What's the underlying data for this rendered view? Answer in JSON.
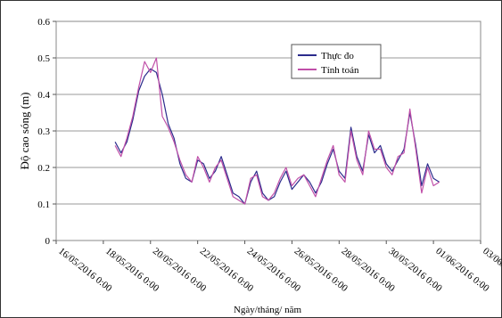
{
  "chart_data": {
    "type": "line",
    "title": "",
    "xlabel": "Ngày/tháng/ năm",
    "ylabel": "Độ cao sóng (m)",
    "ylim": [
      0,
      0.6
    ],
    "yticks": [
      "0",
      "0.1",
      "0.2",
      "0.3",
      "0.4",
      "0.5",
      "0.6"
    ],
    "xlim": [
      "2016-05-16",
      "2016-06-03"
    ],
    "xticks": [
      "16/05/2016 0:00",
      "18/05/2016 0:00",
      "20/05/2016 0:00",
      "22/05/2016 0:00",
      "24/05/2016 0:00",
      "26/05/2016 0:00",
      "28/05/2016 0:00",
      "30/05/2016 0:00",
      "01/06/2016 0:00",
      "03/06/2016 0:00"
    ],
    "grid": "horizontal",
    "legend": "top-right",
    "x": [
      "2016-05-18 12:00",
      "2016-05-18 18:00",
      "2016-05-19 00:00",
      "2016-05-19 06:00",
      "2016-05-19 12:00",
      "2016-05-19 18:00",
      "2016-05-20 00:00",
      "2016-05-20 06:00",
      "2016-05-20 12:00",
      "2016-05-20 18:00",
      "2016-05-21 00:00",
      "2016-05-21 06:00",
      "2016-05-21 12:00",
      "2016-05-21 18:00",
      "2016-05-22 00:00",
      "2016-05-22 06:00",
      "2016-05-22 12:00",
      "2016-05-22 18:00",
      "2016-05-23 00:00",
      "2016-05-23 06:00",
      "2016-05-23 12:00",
      "2016-05-23 18:00",
      "2016-05-24 00:00",
      "2016-05-24 06:00",
      "2016-05-24 12:00",
      "2016-05-24 18:00",
      "2016-05-25 00:00",
      "2016-05-25 06:00",
      "2016-05-25 12:00",
      "2016-05-25 18:00",
      "2016-05-26 00:00",
      "2016-05-26 06:00",
      "2016-05-26 12:00",
      "2016-05-26 18:00",
      "2016-05-27 00:00",
      "2016-05-27 06:00",
      "2016-05-27 12:00",
      "2016-05-27 18:00",
      "2016-05-28 00:00",
      "2016-05-28 06:00",
      "2016-05-28 12:00",
      "2016-05-28 18:00",
      "2016-05-29 00:00",
      "2016-05-29 06:00",
      "2016-05-29 12:00",
      "2016-05-29 18:00",
      "2016-05-30 00:00",
      "2016-05-30 06:00",
      "2016-05-30 12:00",
      "2016-05-30 18:00",
      "2016-05-31 00:00",
      "2016-05-31 06:00",
      "2016-05-31 12:00",
      "2016-05-31 18:00",
      "2016-06-01 00:00",
      "2016-06-01 06:00"
    ],
    "series": [
      {
        "name": "Thực đo",
        "color": "#2b2b8c",
        "values": [
          0.27,
          0.24,
          0.27,
          0.33,
          0.41,
          0.45,
          0.47,
          0.46,
          0.4,
          0.32,
          0.28,
          0.21,
          0.17,
          0.16,
          0.22,
          0.21,
          0.17,
          0.19,
          0.23,
          0.18,
          0.13,
          0.12,
          0.1,
          0.16,
          0.19,
          0.13,
          0.11,
          0.12,
          0.16,
          0.19,
          0.14,
          0.16,
          0.18,
          0.16,
          0.13,
          0.16,
          0.21,
          0.25,
          0.19,
          0.17,
          0.31,
          0.23,
          0.19,
          0.29,
          0.24,
          0.26,
          0.21,
          0.19,
          0.22,
          0.25,
          0.35,
          0.26,
          0.15,
          0.21,
          0.17,
          0.16
        ]
      },
      {
        "name": "Tính toán",
        "color": "#c04fa8",
        "values": [
          0.26,
          0.23,
          0.28,
          0.34,
          0.42,
          0.49,
          0.46,
          0.5,
          0.34,
          0.31,
          0.27,
          0.22,
          0.18,
          0.16,
          0.23,
          0.2,
          0.16,
          0.2,
          0.22,
          0.17,
          0.12,
          0.11,
          0.1,
          0.17,
          0.18,
          0.12,
          0.11,
          0.13,
          0.17,
          0.2,
          0.15,
          0.17,
          0.18,
          0.15,
          0.12,
          0.17,
          0.22,
          0.26,
          0.18,
          0.16,
          0.3,
          0.22,
          0.18,
          0.3,
          0.25,
          0.25,
          0.2,
          0.18,
          0.23,
          0.24,
          0.36,
          0.25,
          0.13,
          0.2,
          0.15,
          0.16
        ]
      }
    ]
  }
}
